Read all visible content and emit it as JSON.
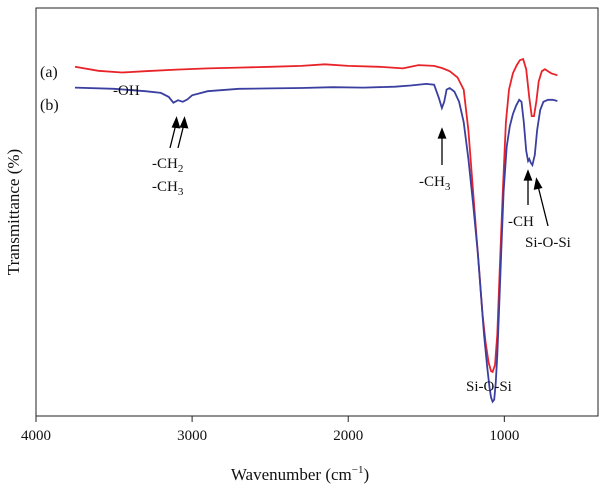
{
  "chart_data": {
    "type": "line",
    "title": "",
    "xlabel": {
      "text": "Wavenumber (cm",
      "sup": "−1",
      "close": ")"
    },
    "ylabel": "Transmittance (%)",
    "x_reversed": true,
    "xlim": [
      4000,
      400
    ],
    "ylim": [
      0,
      100
    ],
    "x_ticks": [
      4000,
      3000,
      2000,
      1000
    ],
    "y_ticks": [],
    "grid": false,
    "legend": "none",
    "series": [
      {
        "name": "(a)",
        "color": "#e8232a",
        "points": [
          [
            3750,
            85.6
          ],
          [
            3600,
            84.6
          ],
          [
            3450,
            84.2
          ],
          [
            3300,
            84.5
          ],
          [
            3100,
            84.9
          ],
          [
            2900,
            85.2
          ],
          [
            2700,
            85.4
          ],
          [
            2500,
            85.6
          ],
          [
            2300,
            85.8
          ],
          [
            2150,
            86.2
          ],
          [
            2000,
            85.8
          ],
          [
            1800,
            85.6
          ],
          [
            1650,
            85.2
          ],
          [
            1550,
            86.0
          ],
          [
            1450,
            85.8
          ],
          [
            1400,
            85.3
          ],
          [
            1350,
            84.5
          ],
          [
            1300,
            83.0
          ],
          [
            1260,
            80.0
          ],
          [
            1230,
            70.0
          ],
          [
            1200,
            55.0
          ],
          [
            1180,
            45.0
          ],
          [
            1160,
            35.0
          ],
          [
            1140,
            25.0
          ],
          [
            1120,
            18.0
          ],
          [
            1100,
            13.0
          ],
          [
            1085,
            11.0
          ],
          [
            1075,
            10.8
          ],
          [
            1060,
            12.5
          ],
          [
            1045,
            20.0
          ],
          [
            1030,
            35.0
          ],
          [
            1010,
            55.0
          ],
          [
            990,
            72.0
          ],
          [
            970,
            80.0
          ],
          [
            945,
            84.0
          ],
          [
            920,
            86.0
          ],
          [
            900,
            87.2
          ],
          [
            880,
            87.5
          ],
          [
            860,
            85.0
          ],
          [
            840,
            78.0
          ],
          [
            825,
            73.5
          ],
          [
            810,
            73.5
          ],
          [
            795,
            77.0
          ],
          [
            780,
            82.0
          ],
          [
            760,
            84.5
          ],
          [
            740,
            85.0
          ],
          [
            720,
            84.5
          ],
          [
            700,
            84.0
          ],
          [
            660,
            83.5
          ]
        ]
      },
      {
        "name": "(b)",
        "color": "#3a3fa0",
        "points": [
          [
            3750,
            80.5
          ],
          [
            3500,
            80.2
          ],
          [
            3300,
            79.6
          ],
          [
            3200,
            79.2
          ],
          [
            3150,
            78.2
          ],
          [
            3120,
            76.8
          ],
          [
            3090,
            77.4
          ],
          [
            3060,
            77.0
          ],
          [
            3030,
            77.6
          ],
          [
            3000,
            78.6
          ],
          [
            2900,
            79.6
          ],
          [
            2700,
            80.2
          ],
          [
            2500,
            80.3
          ],
          [
            2300,
            80.4
          ],
          [
            2100,
            80.6
          ],
          [
            1900,
            80.5
          ],
          [
            1700,
            80.7
          ],
          [
            1600,
            81.0
          ],
          [
            1500,
            81.4
          ],
          [
            1450,
            81.2
          ],
          [
            1420,
            78.0
          ],
          [
            1400,
            75.5
          ],
          [
            1385,
            77.0
          ],
          [
            1370,
            80.0
          ],
          [
            1350,
            80.4
          ],
          [
            1320,
            79.5
          ],
          [
            1290,
            77.0
          ],
          [
            1260,
            72.0
          ],
          [
            1230,
            63.0
          ],
          [
            1200,
            52.0
          ],
          [
            1170,
            40.0
          ],
          [
            1150,
            30.0
          ],
          [
            1130,
            20.0
          ],
          [
            1110,
            12.0
          ],
          [
            1095,
            7.0
          ],
          [
            1085,
            4.5
          ],
          [
            1075,
            3.5
          ],
          [
            1065,
            4.0
          ],
          [
            1055,
            8.0
          ],
          [
            1045,
            15.0
          ],
          [
            1035,
            25.0
          ],
          [
            1020,
            40.0
          ],
          [
            1005,
            55.0
          ],
          [
            985,
            66.0
          ],
          [
            965,
            71.0
          ],
          [
            945,
            74.0
          ],
          [
            925,
            76.0
          ],
          [
            905,
            77.5
          ],
          [
            890,
            77.0
          ],
          [
            875,
            72.0
          ],
          [
            860,
            65.0
          ],
          [
            848,
            62.5
          ],
          [
            840,
            63.0
          ],
          [
            830,
            62.0
          ],
          [
            820,
            61.5
          ],
          [
            805,
            64.0
          ],
          [
            790,
            70.0
          ],
          [
            770,
            75.0
          ],
          [
            750,
            77.0
          ],
          [
            720,
            77.5
          ],
          [
            690,
            77.5
          ],
          [
            660,
            77.2
          ]
        ]
      }
    ],
    "annotations": [
      {
        "id": "oh",
        "parts": [
          {
            "t": "-OH"
          }
        ]
      },
      {
        "id": "ch2",
        "parts": [
          {
            "t": "-CH"
          },
          {
            "t": "2",
            "sub": true
          }
        ]
      },
      {
        "id": "ch3a",
        "parts": [
          {
            "t": "-CH"
          },
          {
            "t": "3",
            "sub": true
          }
        ]
      },
      {
        "id": "ch3b",
        "parts": [
          {
            "t": "-CH"
          },
          {
            "t": "3",
            "sub": true
          }
        ]
      },
      {
        "id": "ch",
        "parts": [
          {
            "t": "-CH"
          }
        ]
      },
      {
        "id": "siosi1",
        "parts": [
          {
            "t": "Si-O-Si"
          }
        ]
      },
      {
        "id": "siosi2",
        "parts": [
          {
            "t": "Si-O-Si"
          }
        ]
      }
    ]
  }
}
